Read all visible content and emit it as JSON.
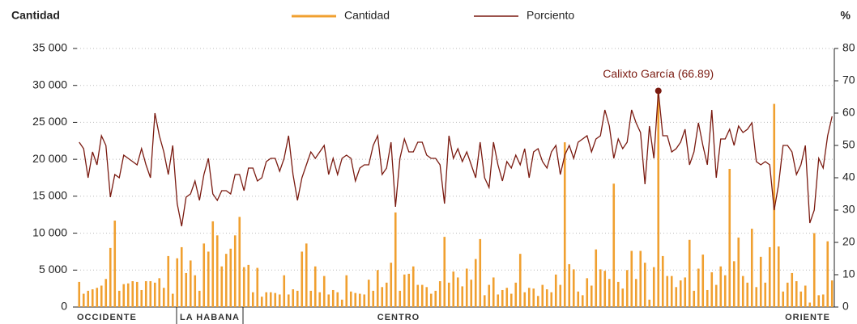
{
  "chart_data": {
    "type": "bar",
    "y_label": "Cantidad",
    "y2_label": "%",
    "annotation": "Calixto García (66.89)",
    "regions": [
      "OCCIDENTE",
      "LA HABANA",
      "CENTRO",
      "ORIENTE"
    ],
    "ylim": [
      0,
      35000
    ],
    "yticks": [
      {
        "value": 0,
        "label": "0"
      },
      {
        "value": 5000,
        "label": "5 000"
      },
      {
        "value": 10000,
        "label": "10 000"
      },
      {
        "value": 15000,
        "label": "15 000"
      },
      {
        "value": 20000,
        "label": "20 000"
      },
      {
        "value": 25000,
        "label": "25 000"
      },
      {
        "value": 30000,
        "label": "30 000"
      },
      {
        "value": 35000,
        "label": "35 000"
      }
    ],
    "y2lim": [
      0,
      80
    ],
    "y2ticks": [
      0,
      10,
      20,
      30,
      40,
      50,
      60,
      70,
      80
    ],
    "grid": true,
    "series": [
      {
        "name": "Cantidad",
        "type": "bar",
        "color": "#f0a030",
        "values": [
          3400,
          1800,
          2200,
          2400,
          2600,
          2900,
          3800,
          8000,
          11700,
          2200,
          3100,
          3200,
          3500,
          3400,
          2300,
          3500,
          3500,
          3300,
          3900,
          2600,
          6900,
          1800,
          6600,
          8100,
          4600,
          6300,
          4300,
          2200,
          8600,
          7500,
          11600,
          9700,
          5500,
          7200,
          7900,
          9700,
          12200,
          5400,
          5700,
          2000,
          5300,
          1400,
          2000,
          2000,
          1900,
          1700,
          4300,
          1700,
          2400,
          2200,
          7500,
          8600,
          2200,
          5500,
          2000,
          4200,
          1700,
          2300,
          2000,
          1000,
          4300,
          2100,
          1900,
          1800,
          1700,
          3700,
          2200,
          5000,
          2700,
          3300,
          6000,
          12800,
          2200,
          4400,
          4500,
          5500,
          3000,
          3000,
          2700,
          1800,
          2200,
          3500,
          9500,
          3300,
          4800,
          4000,
          2800,
          5200,
          3700,
          6500,
          9200,
          1600,
          3000,
          4000,
          1700,
          2300,
          2600,
          1800,
          3300,
          7200,
          2000,
          2600,
          2500,
          1500,
          3000,
          2400,
          2000,
          4400,
          3000,
          22300,
          5800,
          5100,
          2100,
          1600,
          3900,
          2900,
          7800,
          5100,
          4900,
          3800,
          16700,
          3400,
          2500,
          5000,
          7600,
          3800,
          7600,
          6000,
          1000,
          5400,
          28800,
          6900,
          4200,
          4200,
          2700,
          3600,
          4000,
          9100,
          2200,
          5200,
          7100,
          2300,
          4700,
          3000,
          5500,
          4300,
          18700,
          6200,
          9400,
          4200,
          3300,
          10600,
          2700,
          6800,
          3300,
          8100,
          27500,
          8200,
          2100,
          3300,
          4600,
          3500,
          2100,
          2900,
          600,
          10000,
          1600,
          1700,
          8900,
          3600
        ]
      },
      {
        "name": "Porciento",
        "type": "line",
        "axis": "y2",
        "color": "#7a1a10",
        "values": [
          51,
          49,
          40,
          48,
          44,
          53,
          50,
          34,
          41,
          40,
          47,
          46,
          45,
          44,
          49,
          44,
          40,
          60,
          53,
          48,
          41,
          50,
          32,
          25,
          34,
          35,
          39,
          33,
          41,
          46,
          35,
          33,
          36,
          36,
          35,
          41,
          41,
          36,
          43,
          43,
          39,
          40,
          45,
          46,
          46,
          42,
          46,
          53,
          41,
          33,
          40,
          44,
          48,
          46,
          48,
          50,
          41,
          46,
          41,
          46,
          47,
          46,
          39,
          43,
          44,
          44,
          50,
          53,
          41,
          43,
          51,
          31,
          46,
          52,
          48,
          48,
          51,
          51,
          47,
          46,
          46,
          44,
          32,
          53,
          46,
          49,
          45,
          48,
          44,
          40,
          51,
          40,
          37,
          51,
          44,
          39,
          45,
          43,
          47,
          44,
          49,
          40,
          48,
          49,
          45,
          43,
          48,
          50,
          41,
          47,
          50,
          46,
          51,
          52,
          53,
          48,
          52,
          53,
          61,
          56,
          46,
          52,
          49,
          51,
          61,
          57,
          54,
          38,
          56,
          46,
          66.89,
          53,
          53,
          48,
          49,
          51,
          55,
          44,
          48,
          57,
          50,
          44,
          61,
          40,
          52,
          52,
          55,
          50,
          56,
          54,
          55,
          57,
          45,
          44,
          45,
          44,
          30,
          38,
          50,
          50,
          48,
          41,
          44,
          50,
          26,
          30,
          46,
          43,
          53,
          59
        ]
      }
    ]
  }
}
